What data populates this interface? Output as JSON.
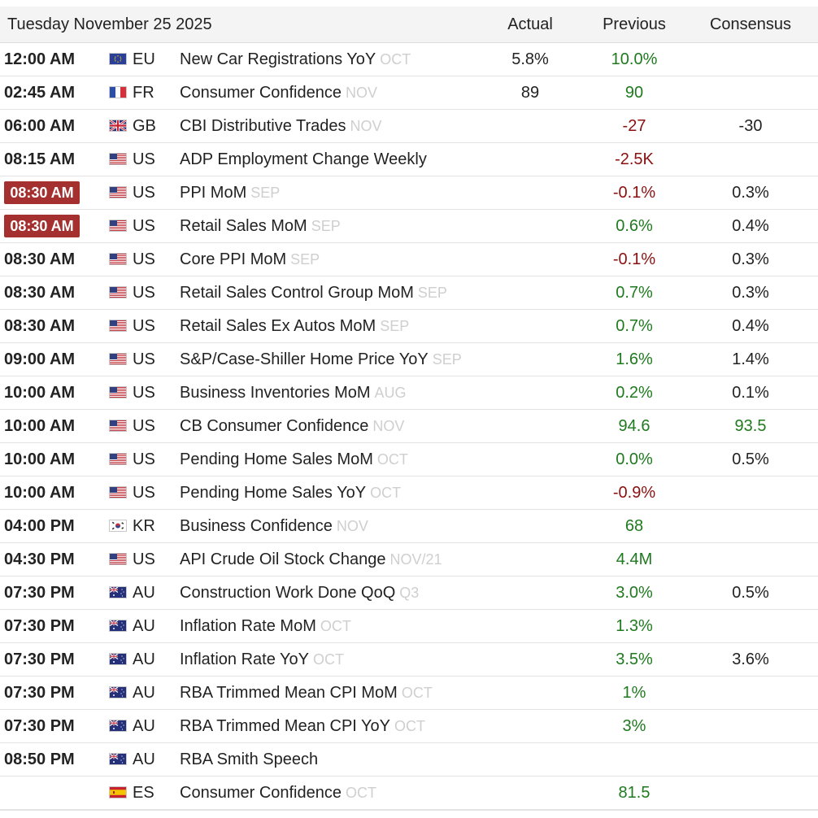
{
  "header": {
    "date": "Tuesday November 25 2025",
    "col_actual": "Actual",
    "col_previous": "Previous",
    "col_consensus": "Consensus"
  },
  "colors": {
    "positive": "#1f7a1f",
    "negative": "#8b1010",
    "highlight_time_bg": "#a4302f",
    "reference": "#cfcfcf"
  },
  "rows": [
    {
      "time": "12:00 AM",
      "highlight": false,
      "flag": "eu-flag-icon",
      "country": "EU",
      "event": "New Car Registrations YoY",
      "ref": "OCT",
      "actual": "5.8%",
      "previous": "10.0%",
      "previous_tone": "green",
      "consensus": "",
      "consensus_tone": "dark"
    },
    {
      "time": "02:45 AM",
      "highlight": false,
      "flag": "fr-flag-icon",
      "country": "FR",
      "event": "Consumer Confidence",
      "ref": "NOV",
      "actual": "89",
      "previous": "90",
      "previous_tone": "green",
      "consensus": "",
      "consensus_tone": "dark"
    },
    {
      "time": "06:00 AM",
      "highlight": false,
      "flag": "gb-flag-icon",
      "country": "GB",
      "event": "CBI Distributive Trades",
      "ref": "NOV",
      "actual": "",
      "previous": "-27",
      "previous_tone": "red",
      "consensus": "-30",
      "consensus_tone": "dark"
    },
    {
      "time": "08:15 AM",
      "highlight": false,
      "flag": "us-flag-icon",
      "country": "US",
      "event": "ADP Employment Change Weekly",
      "ref": "",
      "actual": "",
      "previous": "-2.5K",
      "previous_tone": "red",
      "consensus": "",
      "consensus_tone": "dark"
    },
    {
      "time": "08:30 AM",
      "highlight": true,
      "flag": "us-flag-icon",
      "country": "US",
      "event": "PPI MoM",
      "ref": "SEP",
      "actual": "",
      "previous": "-0.1%",
      "previous_tone": "red",
      "consensus": "0.3%",
      "consensus_tone": "dark"
    },
    {
      "time": "08:30 AM",
      "highlight": true,
      "flag": "us-flag-icon",
      "country": "US",
      "event": "Retail Sales MoM",
      "ref": "SEP",
      "actual": "",
      "previous": "0.6%",
      "previous_tone": "green",
      "consensus": "0.4%",
      "consensus_tone": "dark"
    },
    {
      "time": "08:30 AM",
      "highlight": false,
      "flag": "us-flag-icon",
      "country": "US",
      "event": "Core PPI MoM",
      "ref": "SEP",
      "actual": "",
      "previous": "-0.1%",
      "previous_tone": "red",
      "consensus": "0.3%",
      "consensus_tone": "dark"
    },
    {
      "time": "08:30 AM",
      "highlight": false,
      "flag": "us-flag-icon",
      "country": "US",
      "event": "Retail Sales Control Group MoM",
      "ref": "SEP",
      "actual": "",
      "previous": "0.7%",
      "previous_tone": "green",
      "consensus": "0.3%",
      "consensus_tone": "dark"
    },
    {
      "time": "08:30 AM",
      "highlight": false,
      "flag": "us-flag-icon",
      "country": "US",
      "event": "Retail Sales Ex Autos MoM",
      "ref": "SEP",
      "actual": "",
      "previous": "0.7%",
      "previous_tone": "green",
      "consensus": "0.4%",
      "consensus_tone": "dark"
    },
    {
      "time": "09:00 AM",
      "highlight": false,
      "flag": "us-flag-icon",
      "country": "US",
      "event": "S&P/Case-Shiller Home Price YoY",
      "ref": "SEP",
      "actual": "",
      "previous": "1.6%",
      "previous_tone": "green",
      "consensus": "1.4%",
      "consensus_tone": "dark"
    },
    {
      "time": "10:00 AM",
      "highlight": false,
      "flag": "us-flag-icon",
      "country": "US",
      "event": "Business Inventories MoM",
      "ref": "AUG",
      "actual": "",
      "previous": "0.2%",
      "previous_tone": "green",
      "consensus": "0.1%",
      "consensus_tone": "dark"
    },
    {
      "time": "10:00 AM",
      "highlight": false,
      "flag": "us-flag-icon",
      "country": "US",
      "event": "CB Consumer Confidence",
      "ref": "NOV",
      "actual": "",
      "previous": "94.6",
      "previous_tone": "green",
      "consensus": "93.5",
      "consensus_tone": "green"
    },
    {
      "time": "10:00 AM",
      "highlight": false,
      "flag": "us-flag-icon",
      "country": "US",
      "event": "Pending Home Sales MoM",
      "ref": "OCT",
      "actual": "",
      "previous": "0.0%",
      "previous_tone": "green",
      "consensus": "0.5%",
      "consensus_tone": "dark"
    },
    {
      "time": "10:00 AM",
      "highlight": false,
      "flag": "us-flag-icon",
      "country": "US",
      "event": "Pending Home Sales YoY",
      "ref": "OCT",
      "actual": "",
      "previous": "-0.9%",
      "previous_tone": "red",
      "consensus": "",
      "consensus_tone": "dark"
    },
    {
      "time": "04:00 PM",
      "highlight": false,
      "flag": "kr-flag-icon",
      "country": "KR",
      "event": "Business Confidence",
      "ref": "NOV",
      "actual": "",
      "previous": "68",
      "previous_tone": "green",
      "consensus": "",
      "consensus_tone": "dark"
    },
    {
      "time": "04:30 PM",
      "highlight": false,
      "flag": "us-flag-icon",
      "country": "US",
      "event": "API Crude Oil Stock Change",
      "ref": "NOV/21",
      "actual": "",
      "previous": "4.4M",
      "previous_tone": "green",
      "consensus": "",
      "consensus_tone": "dark"
    },
    {
      "time": "07:30 PM",
      "highlight": false,
      "flag": "au-flag-icon",
      "country": "AU",
      "event": "Construction Work Done QoQ",
      "ref": "Q3",
      "actual": "",
      "previous": "3.0%",
      "previous_tone": "green",
      "consensus": "0.5%",
      "consensus_tone": "dark"
    },
    {
      "time": "07:30 PM",
      "highlight": false,
      "flag": "au-flag-icon",
      "country": "AU",
      "event": "Inflation Rate MoM",
      "ref": "OCT",
      "actual": "",
      "previous": "1.3%",
      "previous_tone": "green",
      "consensus": "",
      "consensus_tone": "dark"
    },
    {
      "time": "07:30 PM",
      "highlight": false,
      "flag": "au-flag-icon",
      "country": "AU",
      "event": "Inflation Rate YoY",
      "ref": "OCT",
      "actual": "",
      "previous": "3.5%",
      "previous_tone": "green",
      "consensus": "3.6%",
      "consensus_tone": "dark"
    },
    {
      "time": "07:30 PM",
      "highlight": false,
      "flag": "au-flag-icon",
      "country": "AU",
      "event": "RBA Trimmed Mean CPI MoM",
      "ref": "OCT",
      "actual": "",
      "previous": "1%",
      "previous_tone": "green",
      "consensus": "",
      "consensus_tone": "dark"
    },
    {
      "time": "07:30 PM",
      "highlight": false,
      "flag": "au-flag-icon",
      "country": "AU",
      "event": "RBA Trimmed Mean CPI YoY",
      "ref": "OCT",
      "actual": "",
      "previous": "3%",
      "previous_tone": "green",
      "consensus": "",
      "consensus_tone": "dark"
    },
    {
      "time": "08:50 PM",
      "highlight": false,
      "flag": "au-flag-icon",
      "country": "AU",
      "event": "RBA Smith Speech",
      "ref": "",
      "actual": "",
      "previous": "",
      "previous_tone": "green",
      "consensus": "",
      "consensus_tone": "dark"
    },
    {
      "time": "",
      "highlight": false,
      "flag": "es-flag-icon",
      "country": "ES",
      "event": "Consumer Confidence",
      "ref": "OCT",
      "actual": "",
      "previous": "81.5",
      "previous_tone": "green",
      "consensus": "",
      "consensus_tone": "dark"
    }
  ]
}
